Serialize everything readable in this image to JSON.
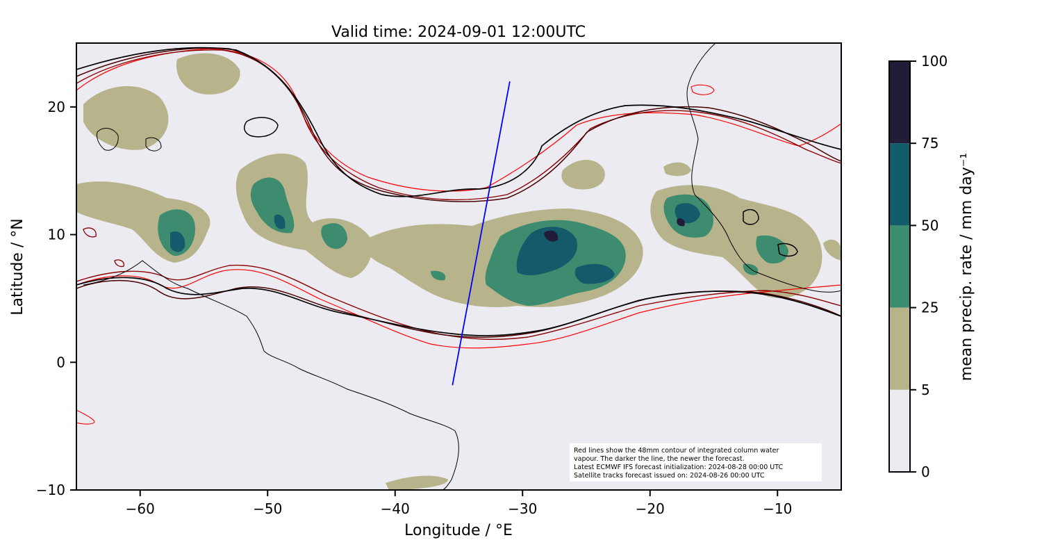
{
  "title": "Valid time: 2024-09-01 12:00UTC",
  "map": {
    "x_label": "Longitude / °E",
    "y_label": "Latitude / °N",
    "x_ticks": [
      -60,
      -50,
      -40,
      -30,
      -20,
      -10
    ],
    "x_tick_labels": [
      "−60",
      "−50",
      "−40",
      "−30",
      "−20",
      "−10"
    ],
    "y_ticks": [
      20,
      10,
      0,
      -10
    ],
    "y_tick_labels": [
      "20",
      "10",
      "0",
      "−10"
    ],
    "lon_range": [
      -65,
      -5
    ],
    "lat_range": [
      -10,
      25
    ],
    "background_color": "#ecebf2",
    "satellite_track": {
      "start": [
        -35.5,
        -1.8
      ],
      "end": [
        -31.0,
        22.0
      ],
      "color": "#0000ff"
    }
  },
  "colorbar": {
    "label": "mean precip. rate / mm day⁻¹",
    "levels": [
      0,
      5,
      25,
      50,
      75,
      100
    ],
    "tick_labels": [
      "0",
      "5",
      "25",
      "50",
      "75",
      "100"
    ],
    "colors": [
      "#ecebf2",
      "#b7b48c",
      "#3d8c6f",
      "#135a6a",
      "#211c37"
    ]
  },
  "note": {
    "lines": [
      "Red lines show the 48mm contour of integrated column water",
      "vapour. The darker the line, the newer the forecast.",
      "Latest ECMWF IFS forecast initialization: 2024-08-28 00:00 UTC",
      "Satellite tracks forecast issued on: 2024-08-26 00:00 UTC"
    ]
  },
  "contour_colors": [
    "#ff0000",
    "#8b0000",
    "#4a0000",
    "#000000"
  ]
}
